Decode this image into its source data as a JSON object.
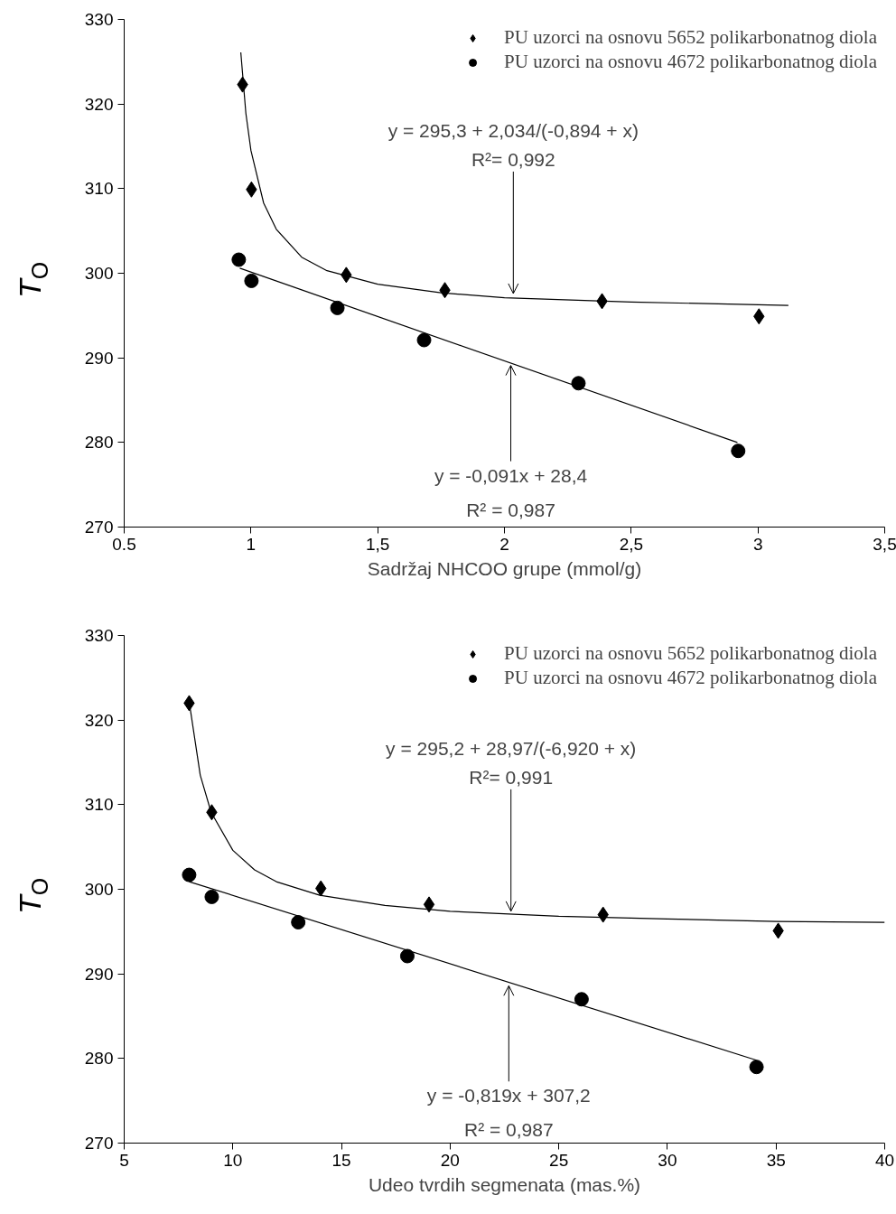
{
  "chart_data": [
    {
      "type": "scatter",
      "xlabel": "Sadržaj NHCOO grupe (mmol/g)",
      "ylabel": "T$_{O}$",
      "xlim": [
        0.5,
        3.5
      ],
      "ylim": [
        270,
        330
      ],
      "xticks": [
        {
          "value": 0.5,
          "label": "0.5"
        },
        {
          "value": 1,
          "label": "1"
        },
        {
          "value": 1.5,
          "label": "1,5"
        },
        {
          "value": 2,
          "label": "2"
        },
        {
          "value": 2.5,
          "label": "2,5"
        },
        {
          "value": 3,
          "label": "3"
        },
        {
          "value": 3.5,
          "label": "3,5"
        }
      ],
      "yticks": [
        270,
        280,
        290,
        300,
        310,
        320,
        330
      ],
      "legend": "top right",
      "grid": false,
      "series": [
        {
          "name": "PU uzorci na osnovu 5652 polikarbonatnog diola",
          "type": "scatter",
          "marker": "diamond",
          "color": "#000000",
          "x": [
            0.967,
            1.002,
            1.376,
            1.765,
            2.385,
            3.004
          ],
          "values": [
            322.3,
            309.9,
            299.8,
            298.0,
            296.7,
            294.9
          ]
        },
        {
          "name": "PU uzorci na osnovu 4672 polikarbonatnog diola",
          "type": "scatter",
          "marker": "circle",
          "color": "#000000",
          "x": [
            0.952,
            1.002,
            1.341,
            1.683,
            2.292,
            2.922
          ],
          "values": [
            301.6,
            299.1,
            295.9,
            292.1,
            287.0,
            279.0
          ]
        },
        {
          "type": "line",
          "color": "#000000",
          "x": [
            0.96,
            0.98,
            1.0,
            1.05,
            1.1,
            1.2,
            1.3,
            1.5,
            1.75,
            2.0,
            2.5,
            3.12
          ],
          "values": [
            326.1,
            318.9,
            314.5,
            308.3,
            305.2,
            301.9,
            300.3,
            298.7,
            297.7,
            297.1,
            296.6,
            296.2
          ]
        },
        {
          "type": "line",
          "color": "#000000",
          "x": [
            0.956,
            2.919
          ],
          "values": [
            300.6,
            280.0
          ]
        }
      ],
      "annotations": [
        {
          "text": "y = 295,3 + 2,034/(-0,894 + x)\nR²= 0,992",
          "x": 2.035,
          "y": 297.6
        },
        {
          "text": "y = -0,091x + 28,4\nR² = 0,987",
          "x": 2.025,
          "y": 289.1
        }
      ]
    },
    {
      "type": "scatter",
      "xlabel": "Udeo tvrdih segmenata (mas.%)",
      "ylabel": "T$_{O}$",
      "xlim": [
        5,
        40
      ],
      "ylim": [
        270,
        330
      ],
      "xticks": [
        5,
        10,
        15,
        20,
        25,
        30,
        35,
        40
      ],
      "yticks": [
        270,
        280,
        290,
        300,
        310,
        320,
        330
      ],
      "legend": "top right",
      "grid": false,
      "series": [
        {
          "name": "PU uzorci na osnovu 5652 polikarbonatnog diola",
          "type": "scatter",
          "marker": "diamond",
          "color": "#000000",
          "x": [
            7.99,
            9.03,
            14.05,
            19.03,
            27.04,
            35.1
          ],
          "values": [
            322.0,
            309.1,
            300.1,
            298.2,
            297.0,
            295.1
          ]
        },
        {
          "name": "PU uzorci na osnovu 4672 polikarbonatnog diola",
          "type": "scatter",
          "marker": "circle",
          "color": "#000000",
          "x": [
            7.99,
            9.03,
            13.01,
            18.03,
            26.05,
            34.1
          ],
          "values": [
            301.7,
            299.1,
            296.1,
            292.1,
            287.0,
            279.0
          ]
        },
        {
          "type": "line",
          "color": "#000000",
          "x": [
            8,
            8.5,
            9,
            10,
            11,
            12,
            14,
            17,
            20,
            25,
            30,
            35,
            40
          ],
          "values": [
            322.0,
            313.5,
            309.1,
            304.6,
            302.3,
            300.9,
            299.3,
            298.1,
            297.4,
            296.8,
            296.5,
            296.2,
            296.1
          ]
        },
        {
          "type": "line",
          "color": "#000000",
          "x": [
            7.99,
            34.1
          ],
          "values": [
            300.9,
            279.8
          ]
        }
      ],
      "annotations": [
        {
          "text": "y = 295,2 + 28,97/(-6,920 + x)\nR²= 0,991",
          "x": 22.8,
          "y": 297.4
        },
        {
          "text": "y = -0,819x + 307,2\nR² = 0,987",
          "x": 22.7,
          "y": 288.6
        }
      ]
    }
  ]
}
